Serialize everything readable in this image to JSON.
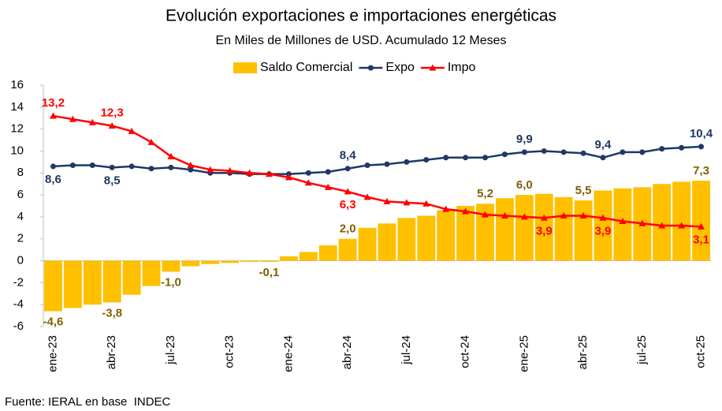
{
  "chart_data": {
    "type": "combo",
    "title": "Evolución exportaciones e importaciones energéticas",
    "subtitle": "En Miles de Millones de USD. Acumulado 12 Meses",
    "source": "Fuente: IERAL en base  INDEC",
    "categories": [
      "ene-23",
      null,
      null,
      "abr-23",
      null,
      null,
      "jul-23",
      null,
      null,
      "oct-23",
      null,
      null,
      "ene-24",
      null,
      null,
      "abr-24",
      null,
      null,
      "jul-24",
      null,
      null,
      "oct-24",
      null,
      null,
      "ene-25",
      null,
      null,
      "abr-25",
      null,
      null,
      "jul-25",
      null,
      null,
      "oct-25"
    ],
    "series": [
      {
        "name": "Saldo Comercial",
        "type": "bar",
        "color": "#ffc000",
        "label_color": "#7f6000",
        "values": [
          -4.6,
          -4.3,
          -4.0,
          -3.8,
          -3.1,
          -2.3,
          -1.0,
          -0.5,
          -0.3,
          -0.2,
          -0.1,
          -0.1,
          0.4,
          0.8,
          1.4,
          2.0,
          3.0,
          3.4,
          3.9,
          4.1,
          4.6,
          5.0,
          5.2,
          5.7,
          6.0,
          6.1,
          5.8,
          5.5,
          6.4,
          6.6,
          6.7,
          7.0,
          7.2,
          7.3
        ],
        "value_labels": [
          "-4,6",
          null,
          null,
          "-3,8",
          null,
          null,
          "-1,0",
          null,
          null,
          null,
          null,
          "-0,1",
          null,
          null,
          null,
          "2,0",
          null,
          null,
          null,
          null,
          null,
          null,
          "5,2",
          null,
          "6,0",
          null,
          null,
          "5,5",
          null,
          null,
          null,
          null,
          null,
          "7,3"
        ]
      },
      {
        "name": "Expo",
        "type": "line",
        "marker": "circle",
        "color": "#1f3864",
        "label_color": "#1f3864",
        "values": [
          8.6,
          8.7,
          8.7,
          8.5,
          8.6,
          8.4,
          8.5,
          8.3,
          8.0,
          8.0,
          7.9,
          7.9,
          7.9,
          8.0,
          8.1,
          8.4,
          8.7,
          8.8,
          9.0,
          9.2,
          9.4,
          9.4,
          9.4,
          9.7,
          9.9,
          10.0,
          9.9,
          9.8,
          9.4,
          9.9,
          9.9,
          10.2,
          10.3,
          10.4
        ],
        "value_labels": [
          "8,6",
          null,
          null,
          "8,5",
          null,
          null,
          null,
          null,
          null,
          null,
          null,
          null,
          null,
          null,
          null,
          "8,4",
          null,
          null,
          null,
          null,
          null,
          null,
          null,
          null,
          "9,9",
          null,
          null,
          null,
          "9,4",
          null,
          null,
          null,
          null,
          "10,4"
        ]
      },
      {
        "name": "Impo",
        "type": "line",
        "marker": "triangle",
        "color": "#ff0000",
        "label_color": "#ff0000",
        "values": [
          13.2,
          12.9,
          12.6,
          12.3,
          11.8,
          10.8,
          9.5,
          8.7,
          8.3,
          8.2,
          8.0,
          7.9,
          7.6,
          7.1,
          6.7,
          6.3,
          5.8,
          5.4,
          5.3,
          5.2,
          4.7,
          4.5,
          4.2,
          4.1,
          4.0,
          3.9,
          4.1,
          4.1,
          3.9,
          3.6,
          3.4,
          3.2,
          3.2,
          3.1
        ],
        "value_labels": [
          "13,2",
          null,
          null,
          "12,3",
          null,
          null,
          null,
          null,
          null,
          null,
          null,
          null,
          null,
          null,
          null,
          "6,3",
          null,
          null,
          null,
          null,
          null,
          null,
          null,
          null,
          null,
          "3,9",
          null,
          null,
          "3,9",
          null,
          null,
          null,
          null,
          "3,1"
        ]
      }
    ],
    "ylim": [
      -6,
      16
    ],
    "yticks": [
      -6,
      -4,
      -2,
      0,
      2,
      4,
      6,
      8,
      10,
      12,
      14,
      16
    ],
    "grid": false,
    "legend": "top"
  }
}
